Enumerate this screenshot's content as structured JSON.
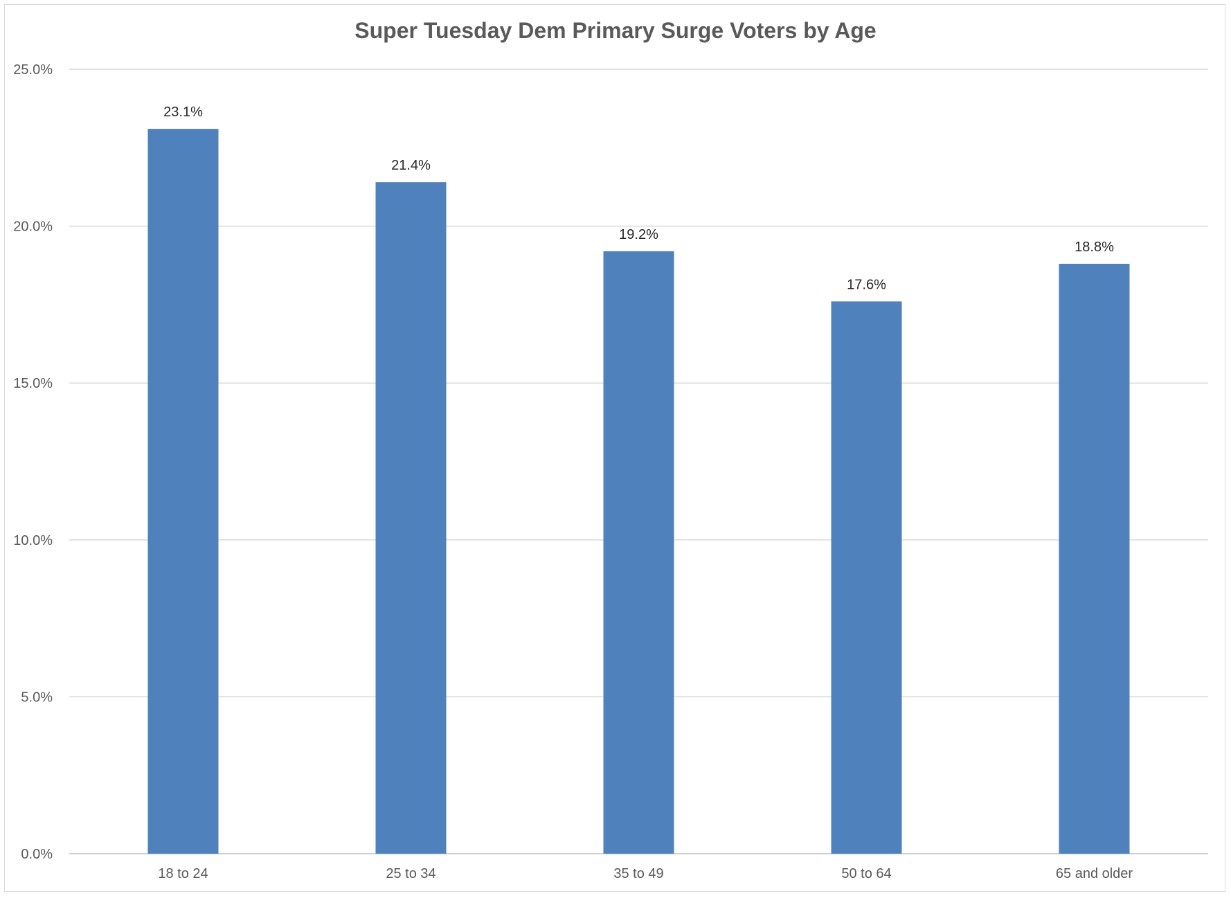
{
  "chart_data": {
    "type": "bar",
    "title": "Super Tuesday Dem Primary Surge Voters by Age",
    "xlabel": "",
    "ylabel": "",
    "categories": [
      "18 to 24",
      "25 to 34",
      "35 to 49",
      "50 to 64",
      "65 and older"
    ],
    "values": [
      23.1,
      21.4,
      19.2,
      17.6,
      18.8
    ],
    "data_labels": [
      "23.1%",
      "21.4%",
      "19.2%",
      "17.6%",
      "18.8%"
    ],
    "ylim": [
      0,
      25
    ],
    "y_ticks": [
      0,
      5,
      10,
      15,
      20,
      25
    ],
    "y_tick_labels": [
      "0.0%",
      "5.0%",
      "10.0%",
      "15.0%",
      "20.0%",
      "25.0%"
    ],
    "grid": true,
    "legend": "none",
    "bar_color": "#4f81bd",
    "gridline_color": "#d9d9d9"
  }
}
